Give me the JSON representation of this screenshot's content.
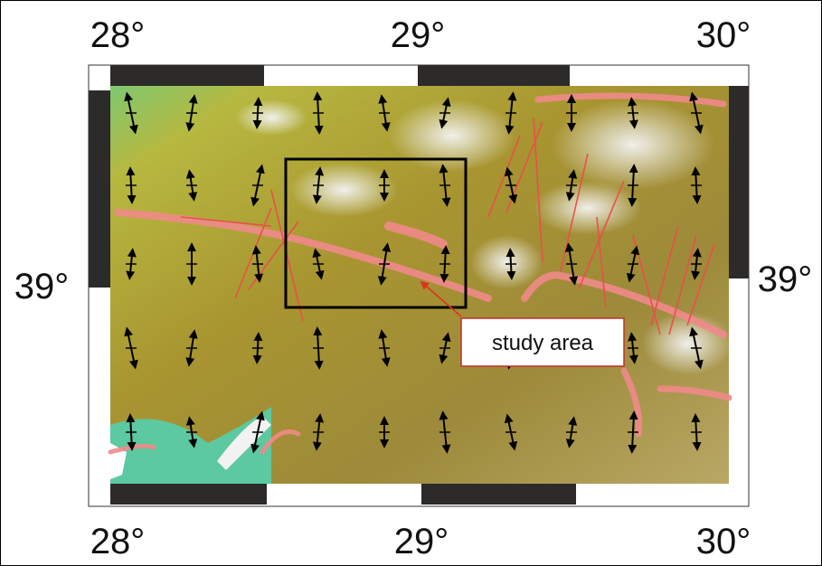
{
  "top_labels": [
    "28°",
    "29°",
    "30°"
  ],
  "bottom_labels": [
    "28°",
    "29°",
    "30°"
  ],
  "left_label": "39°",
  "right_label": "39°",
  "annotation": "study area"
}
